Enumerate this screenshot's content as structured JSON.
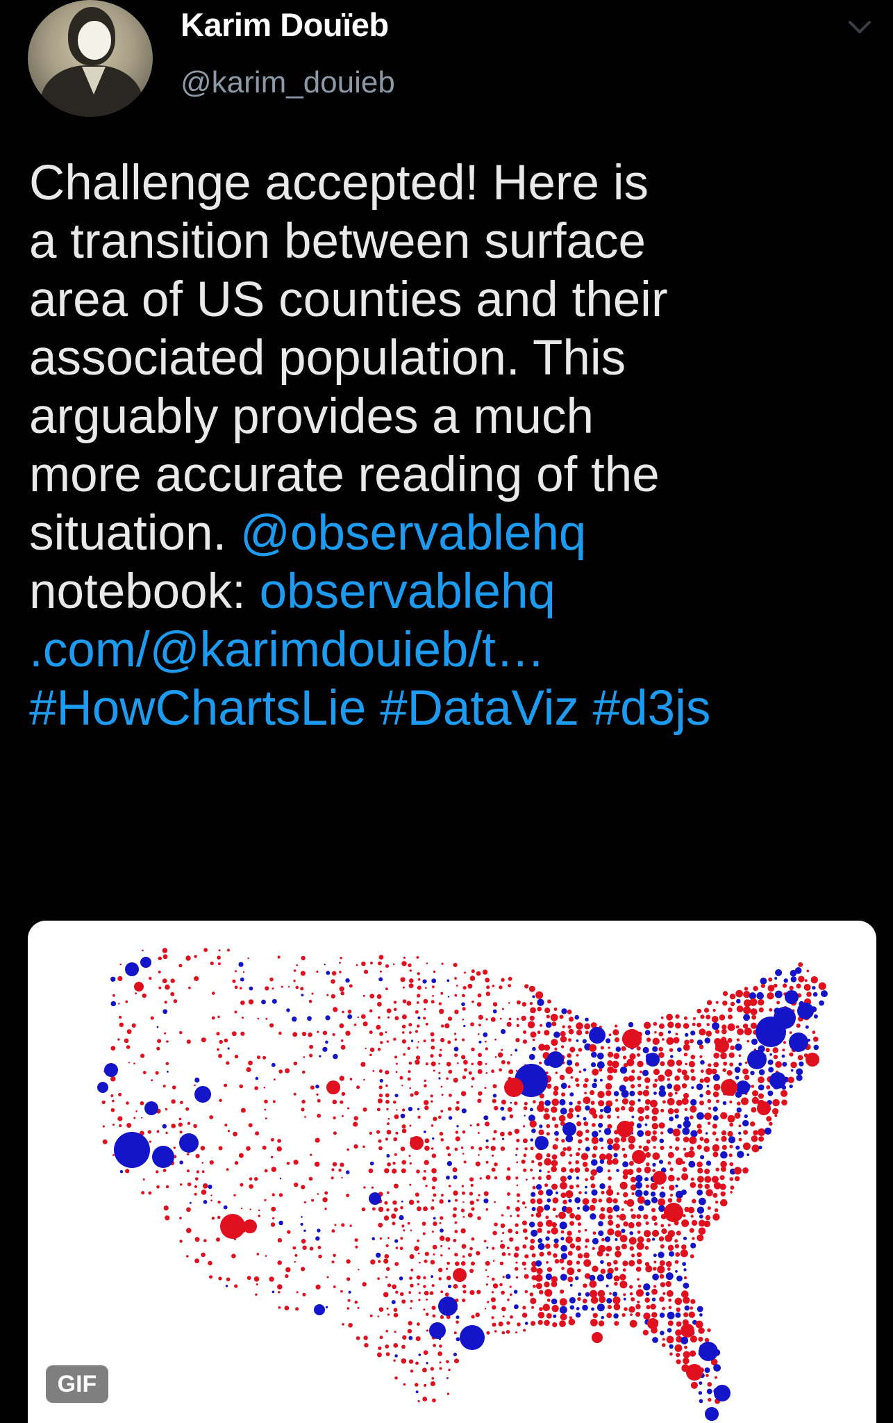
{
  "user": {
    "display_name": "Karim Douïeb",
    "handle": "@karim_douieb",
    "avatar_icon": "portrait-avatar-icon"
  },
  "menu": {
    "icon": "chevron-down-icon"
  },
  "tweet": {
    "lines": [
      [
        {
          "text": "Challenge accepted! Here is",
          "link": false
        }
      ],
      [
        {
          "text": "a transition between surface",
          "link": false
        }
      ],
      [
        {
          "text": "area of US counties and their",
          "link": false
        }
      ],
      [
        {
          "text": "associated population. This",
          "link": false
        }
      ],
      [
        {
          "text": "arguably provides a much",
          "link": false
        }
      ],
      [
        {
          "text": "more accurate reading of the",
          "link": false
        }
      ],
      [
        {
          "text": "situation. ",
          "link": false
        },
        {
          "text": "@observablehq",
          "link": true
        }
      ],
      [
        {
          "text": "notebook: ",
          "link": false
        },
        {
          "text": "observablehq",
          "link": true
        }
      ],
      [
        {
          "text": ".com/@karimdouieb/t…",
          "link": true
        }
      ],
      [
        {
          "text": "#HowChartsLie #DataViz #d3js",
          "link": true
        }
      ]
    ],
    "link_color": "#1d9bf0",
    "text_color": "#e9e9e9"
  },
  "media": {
    "type": "gif",
    "badge_label": "GIF",
    "map_colors": {
      "democrat": "#1414c8",
      "republican": "#e0101e"
    }
  }
}
